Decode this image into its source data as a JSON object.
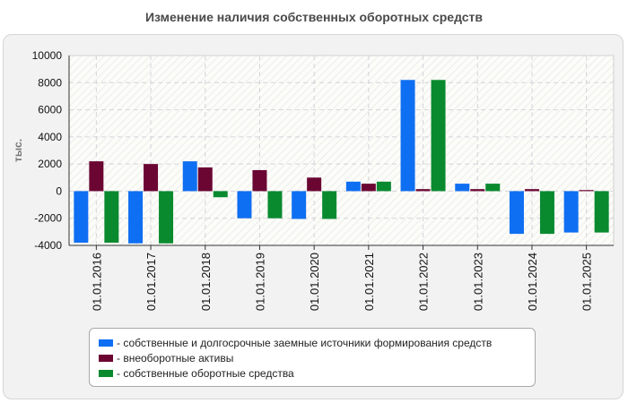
{
  "chart_data": {
    "type": "bar",
    "title": "Изменение наличия собственных оборотных средств",
    "ylabel": "тыс.",
    "xlabel": "",
    "ylim": [
      -4000,
      10000
    ],
    "yticks": [
      10000,
      8000,
      6000,
      4000,
      2000,
      0,
      -2000,
      -4000
    ],
    "grid": true,
    "legend_position": "bottom",
    "categories": [
      "01.01.2016",
      "01.01.2017",
      "01.01.2018",
      "01.01.2019",
      "01.01.2020",
      "01.01.2021",
      "01.01.2022",
      "01.01.2023",
      "01.01.2024",
      "01.01.2025"
    ],
    "series": [
      {
        "name": "- собственные и долгосрочные заемные источники формирования средств",
        "color": "#0f6ff2",
        "values": [
          -3800,
          -3850,
          2200,
          -2000,
          -2050,
          700,
          8200,
          550,
          -3150,
          -3050
        ]
      },
      {
        "name": "- внеоборотные активы",
        "color": "#6b0633",
        "values": [
          2200,
          2000,
          1750,
          1550,
          1000,
          550,
          150,
          150,
          150,
          80
        ]
      },
      {
        "name": "- собственные оборотные средства",
        "color": "#0a8a2f",
        "values": [
          -3800,
          -3850,
          -450,
          -2000,
          -2050,
          700,
          8200,
          550,
          -3150,
          -3050
        ]
      }
    ]
  }
}
